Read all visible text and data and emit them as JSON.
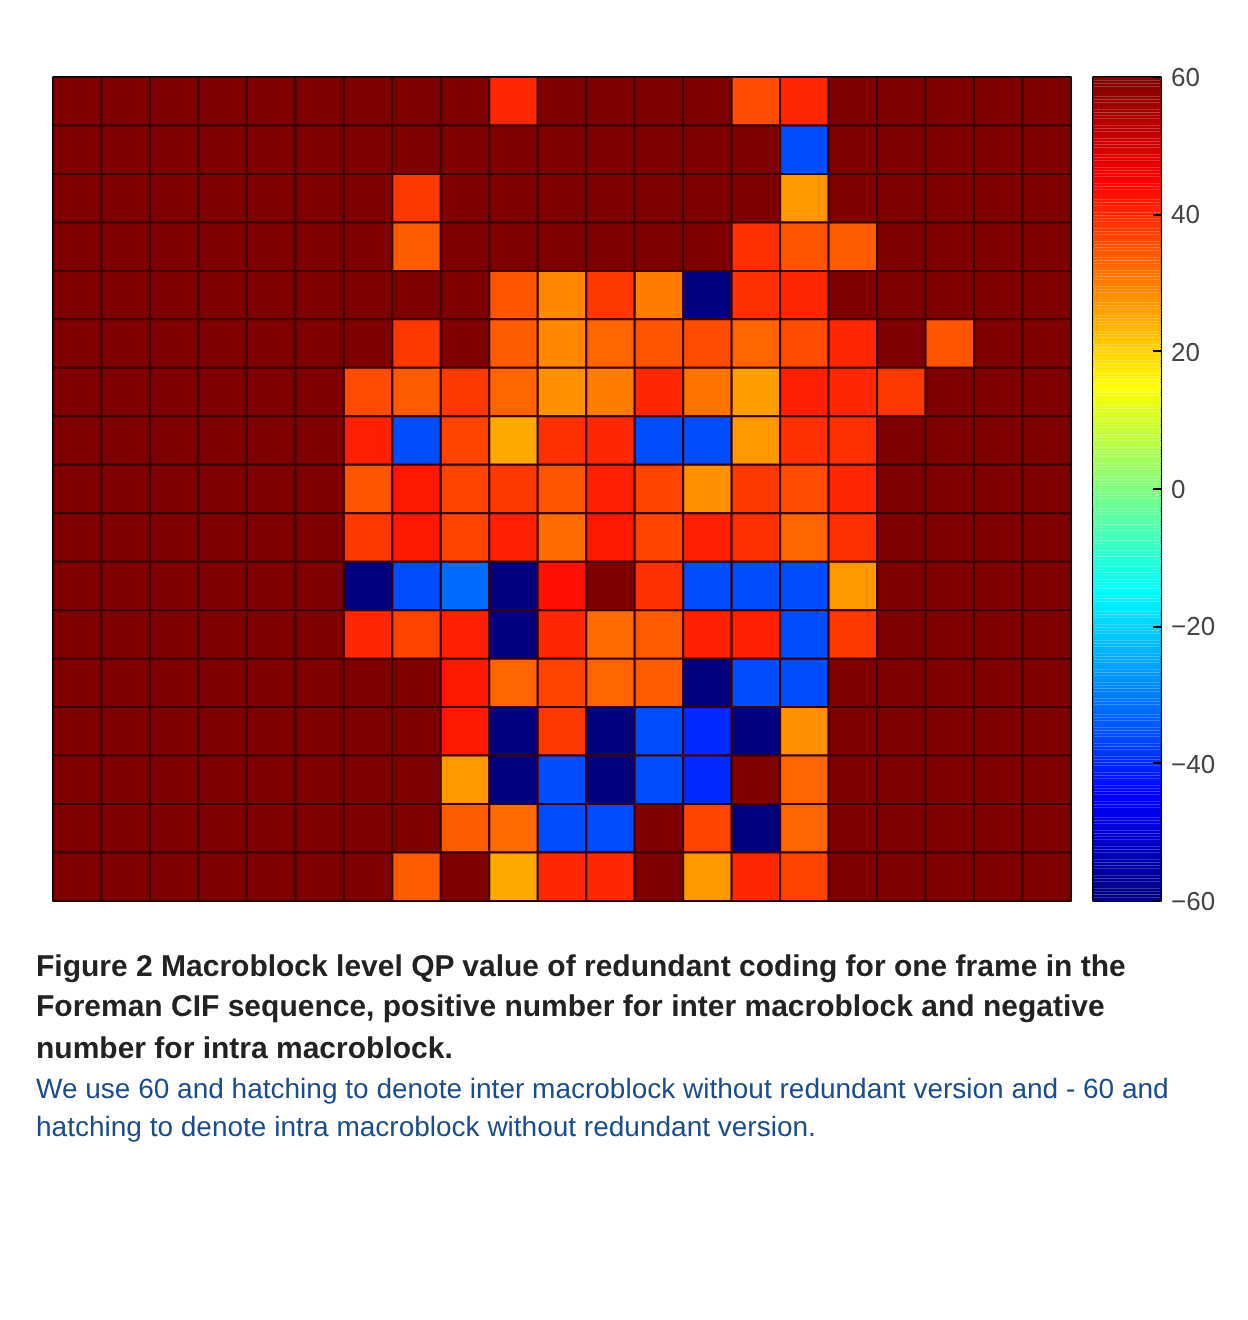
{
  "chart_data": {
    "type": "heatmap",
    "title": "Figure 2 Macroblock level QP value of redundant coding for one frame in the Foreman CIF sequence, positive number for inter macroblock and negative number for intra macroblock.",
    "annotations": [
      "We use 60 and hatching to denote inter macroblock without redundant version and - 60 and hatching to denote intra macroblock without redundant version."
    ],
    "categories": [
      null,
      null,
      null,
      null,
      null,
      null,
      null,
      null,
      null,
      null,
      null,
      null,
      null,
      null,
      null,
      null,
      null,
      null,
      null,
      null,
      null
    ],
    "y_categories": [
      null,
      null,
      null,
      null,
      null,
      null,
      null,
      null,
      null,
      null,
      null,
      null,
      null,
      null,
      null,
      null,
      null
    ],
    "cells": [
      [
        60,
        60,
        60,
        60,
        60,
        60,
        60,
        60,
        60,
        40,
        60,
        60,
        60,
        60,
        36,
        40,
        60,
        60,
        60,
        60,
        60
      ],
      [
        60,
        60,
        60,
        60,
        60,
        60,
        60,
        60,
        60,
        60,
        60,
        60,
        60,
        60,
        60,
        -36,
        60,
        60,
        60,
        60,
        60
      ],
      [
        60,
        60,
        60,
        60,
        60,
        60,
        60,
        38,
        60,
        60,
        60,
        60,
        60,
        60,
        60,
        27,
        60,
        60,
        60,
        60,
        60
      ],
      [
        60,
        60,
        60,
        60,
        60,
        60,
        60,
        34,
        60,
        60,
        60,
        60,
        60,
        60,
        39,
        35,
        34,
        60,
        60,
        60,
        60
      ],
      [
        60,
        60,
        60,
        60,
        60,
        60,
        60,
        60,
        60,
        35,
        29,
        38,
        30,
        -60,
        39,
        40,
        60,
        60,
        60,
        60,
        60
      ],
      [
        60,
        60,
        60,
        60,
        60,
        60,
        60,
        38,
        60,
        34,
        29,
        33,
        35,
        36,
        33,
        36,
        40,
        60,
        35,
        60,
        60
      ],
      [
        60,
        60,
        60,
        60,
        60,
        60,
        36,
        34,
        38,
        33,
        28,
        30,
        40,
        31,
        26,
        41,
        40,
        38,
        60,
        60,
        60
      ],
      [
        60,
        60,
        60,
        60,
        60,
        60,
        41,
        -36,
        37,
        25,
        39,
        40,
        -36,
        -36,
        27,
        39,
        39,
        60,
        60,
        60,
        60
      ],
      [
        60,
        60,
        60,
        60,
        60,
        60,
        35,
        42,
        37,
        38,
        35,
        41,
        37,
        28,
        38,
        36,
        40,
        60,
        60,
        60,
        60
      ],
      [
        60,
        60,
        60,
        60,
        60,
        60,
        38,
        42,
        37,
        41,
        32,
        42,
        37,
        41,
        39,
        33,
        39,
        60,
        60,
        60,
        60
      ],
      [
        60,
        60,
        60,
        60,
        60,
        60,
        -60,
        -36,
        -32,
        -60,
        43,
        60,
        39,
        -36,
        -36,
        -36,
        27,
        60,
        60,
        60,
        60
      ],
      [
        60,
        60,
        60,
        60,
        60,
        60,
        40,
        37,
        41,
        -60,
        40,
        32,
        34,
        41,
        41,
        -36,
        38,
        60,
        60,
        60,
        60
      ],
      [
        60,
        60,
        60,
        60,
        60,
        60,
        60,
        60,
        42,
        33,
        37,
        33,
        34,
        -60,
        -36,
        -36,
        60,
        60,
        60,
        60,
        60
      ],
      [
        60,
        60,
        60,
        60,
        60,
        60,
        60,
        60,
        42,
        -60,
        38,
        -60,
        -36,
        -40,
        -60,
        28,
        60,
        60,
        60,
        60,
        60
      ],
      [
        60,
        60,
        60,
        60,
        60,
        60,
        60,
        60,
        27,
        -60,
        -36,
        -60,
        -36,
        -40,
        60,
        33,
        60,
        60,
        60,
        60,
        60
      ],
      [
        60,
        60,
        60,
        60,
        60,
        60,
        60,
        60,
        34,
        32,
        -36,
        -36,
        60,
        37,
        -60,
        33,
        60,
        60,
        60,
        60,
        60
      ],
      [
        60,
        60,
        60,
        60,
        60,
        60,
        60,
        34,
        60,
        25,
        40,
        40,
        60,
        27,
        40,
        37,
        60,
        60,
        60,
        60,
        60
      ]
    ],
    "clim": [
      -60,
      60
    ],
    "cticks": [
      -60,
      -40,
      -20,
      0,
      20,
      40,
      60
    ]
  }
}
